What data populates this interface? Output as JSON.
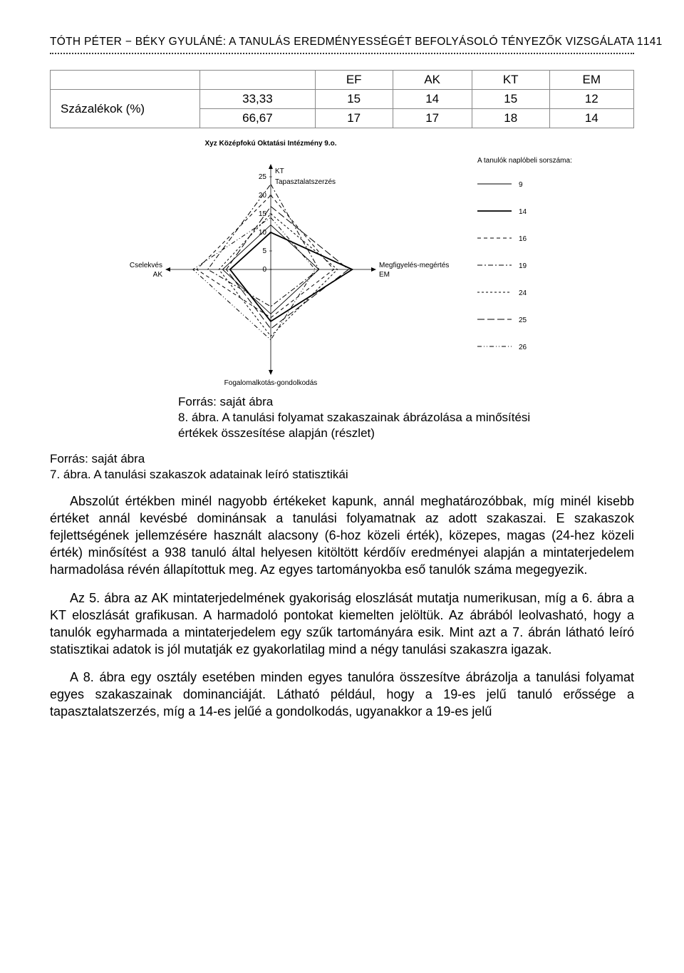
{
  "header": {
    "title": "TÓTH PÉTER − BÉKY GYULÁNÉ: A TANULÁS EREDMÉNYESSÉGÉT BEFOLYÁSOLÓ TÉNYEZŐK VIZSGÁLATA 1",
    "page": "141"
  },
  "table": {
    "rowlabel": "Százalékok (%)",
    "columns": [
      "",
      "EF",
      "AK",
      "KT",
      "EM"
    ],
    "rows": [
      [
        "33,33",
        "15",
        "14",
        "15",
        "12"
      ],
      [
        "66,67",
        "17",
        "17",
        "18",
        "14"
      ]
    ]
  },
  "chart": {
    "title": "Xyz Középfokú Oktatási Intézmény 9.o.",
    "axes": {
      "top": {
        "label": "Tapasztalatszerzés",
        "code": "KT"
      },
      "right": {
        "label": "Megfigyelés-megértés",
        "code": "EM"
      },
      "bottom": {
        "label": "Fogalomalkotás-gondolkodás",
        "code": ""
      },
      "left": {
        "label": "Cselekvés",
        "code": "AK"
      }
    },
    "ticks": [
      0,
      5,
      10,
      15,
      20,
      25
    ],
    "legend_title": "A tanulók naplóbeli sorszáma:",
    "series": [
      {
        "id": "9",
        "dash": "none",
        "width": 0.9,
        "values": [
          12,
          13,
          12,
          13
        ]
      },
      {
        "id": "14",
        "dash": "none",
        "width": 1.8,
        "values": [
          10,
          22,
          14,
          11
        ]
      },
      {
        "id": "16",
        "dash": "5,4",
        "width": 1.0,
        "values": [
          20,
          17,
          13,
          20
        ]
      },
      {
        "id": "19",
        "dash": "7,3,2,3",
        "width": 1.0,
        "values": [
          23,
          13,
          10,
          17
        ]
      },
      {
        "id": "24",
        "dash": "3,3",
        "width": 1.0,
        "values": [
          15,
          18,
          18,
          14
        ]
      },
      {
        "id": "25",
        "dash": "10,4",
        "width": 1.0,
        "values": [
          17,
          21,
          16,
          12
        ]
      },
      {
        "id": "26",
        "dash": "6,3,1,3,1,3",
        "width": 1.0,
        "values": [
          14,
          12,
          19,
          21
        ]
      }
    ],
    "axis_max": 25,
    "stroke": "#000000",
    "bg": "#ffffff"
  },
  "captions": {
    "src_inner": "Forrás: saját ábra",
    "cap8_a": "8. ábra. A tanulási folyamat szakaszainak ábrázolása a minősítési",
    "cap8_b": "értékek összesítése alapján (részlet)",
    "src_outer": "Forrás: saját ábra",
    "cap7": "7. ábra. A tanulási szakaszok adatainak leíró statisztikái"
  },
  "paras": {
    "p1": "Abszolút értékben minél nagyobb értékeket kapunk, annál meghatározóbbak, míg minél kisebb értéket annál kevésbé dominánsak a tanulási folyamatnak az adott szakaszai. E szakaszok fejlettségének jellemzésére használt alacsony (6-hoz közeli érték), közepes, magas (24-hez közeli érték) minősítést a 938 tanuló által helyesen kitöltött kérdőív eredményei alapján a mintaterjedelem harmadolása révén állapítottuk meg. Az egyes tartományokba eső tanulók száma megegyezik.",
    "p2": "Az 5. ábra az AK mintaterjedelmének gyakoriság eloszlását mutatja numerikusan, míg a 6. ábra a KT eloszlását grafikusan. A harmadoló pontokat kiemelten jelöltük. Az ábrából leolvasható, hogy a tanulók egyharmada a mintaterjedelem egy szűk tartományára esik. Mint azt a 7. ábrán látható leíró statisztikai adatok is jól mutatják ez gyakorlatilag mind a négy tanulási szakaszra igazak.",
    "p3": "A 8. ábra egy osztály esetében minden egyes tanulóra összesítve ábrázolja a tanulási folyamat egyes szakaszainak dominanciáját. Látható például, hogy a 19-es jelű tanuló erőssége a tapasztalatszerzés, míg a 14-es jelűé a gondolkodás, ugyanakkor a 19-es jelű"
  }
}
